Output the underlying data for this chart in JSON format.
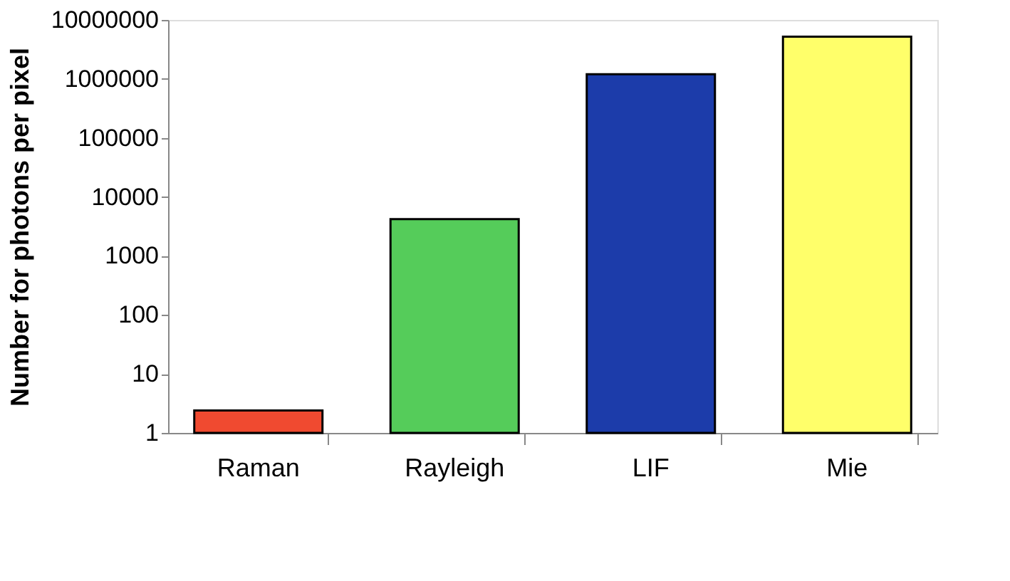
{
  "chart_data": {
    "type": "bar",
    "ylabel": "Number for photons per pixel",
    "categories": [
      "Raman",
      "Rayleigh",
      "LIF",
      "Mie"
    ],
    "values": [
      2.4,
      4200,
      1200000,
      5200000
    ],
    "colors": [
      "#f04a30",
      "#55cc5a",
      "#1c3caa",
      "#ffff6a"
    ],
    "log": true,
    "ylim": [
      1,
      10000000
    ],
    "yticks": [
      1,
      10,
      100,
      1000,
      10000,
      100000,
      1000000,
      10000000
    ],
    "grid": false
  }
}
